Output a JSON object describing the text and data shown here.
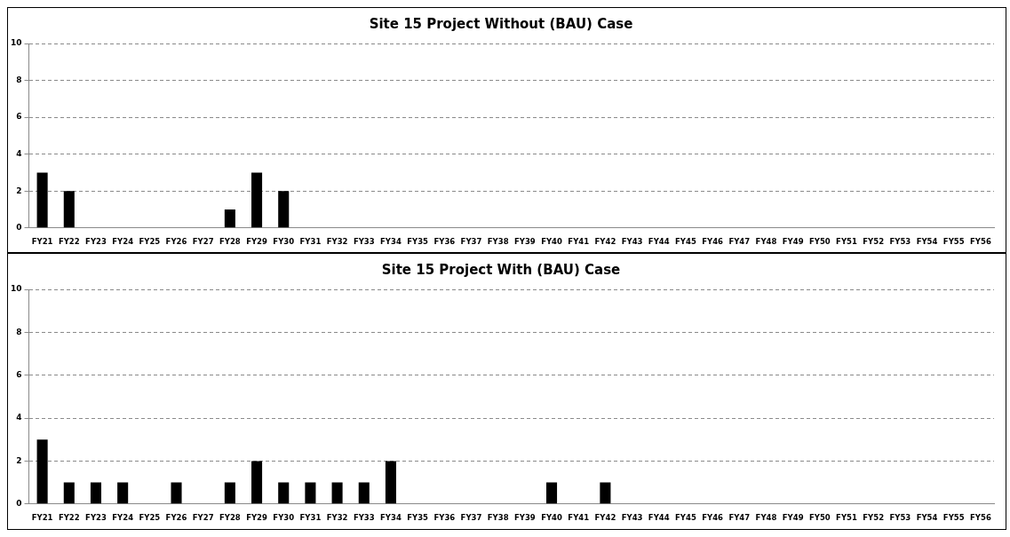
{
  "chart_data": [
    {
      "type": "bar",
      "title": "Site 15 Project Without (BAU) Case",
      "categories": [
        "FY21",
        "FY22",
        "FY23",
        "FY24",
        "FY25",
        "FY26",
        "FY27",
        "FY28",
        "FY29",
        "FY30",
        "FY31",
        "FY32",
        "FY33",
        "FY34",
        "FY35",
        "FY36",
        "FY37",
        "FY38",
        "FY39",
        "FY40",
        "FY41",
        "FY42",
        "FY43",
        "FY44",
        "FY45",
        "FY46",
        "FY47",
        "FY48",
        "FY49",
        "FY50",
        "FY51",
        "FY52",
        "FY53",
        "FY54",
        "FY55",
        "FY56"
      ],
      "values": [
        3,
        2,
        0,
        0,
        0,
        0,
        0,
        1,
        3,
        2,
        0,
        0,
        0,
        0,
        0,
        0,
        0,
        0,
        0,
        0,
        0,
        0,
        0,
        0,
        0,
        0,
        0,
        0,
        0,
        0,
        0,
        0,
        0,
        0,
        0,
        0
      ],
      "color": "#000000",
      "ylim": [
        0,
        10
      ],
      "yticks": [
        0,
        2,
        4,
        6,
        8,
        10
      ],
      "grid": "y",
      "legend": false
    },
    {
      "type": "bar",
      "title": "Site 15 Project With (BAU) Case",
      "categories": [
        "FY21",
        "FY22",
        "FY23",
        "FY24",
        "FY25",
        "FY26",
        "FY27",
        "FY28",
        "FY29",
        "FY30",
        "FY31",
        "FY32",
        "FY33",
        "FY34",
        "FY35",
        "FY36",
        "FY37",
        "FY38",
        "FY39",
        "FY40",
        "FY41",
        "FY42",
        "FY43",
        "FY44",
        "FY45",
        "FY46",
        "FY47",
        "FY48",
        "FY49",
        "FY50",
        "FY51",
        "FY52",
        "FY53",
        "FY54",
        "FY55",
        "FY56"
      ],
      "values": [
        3,
        1,
        1,
        1,
        0,
        1,
        0,
        1,
        2,
        1,
        1,
        1,
        1,
        2,
        0,
        0,
        0,
        0,
        0,
        1,
        0,
        1,
        0,
        0,
        0,
        0,
        0,
        0,
        0,
        0,
        0,
        0,
        0,
        0,
        0,
        0
      ],
      "color": "#000000",
      "ylim": [
        0,
        10
      ],
      "yticks": [
        0,
        2,
        4,
        6,
        8,
        10
      ],
      "grid": "y",
      "legend": false
    }
  ]
}
